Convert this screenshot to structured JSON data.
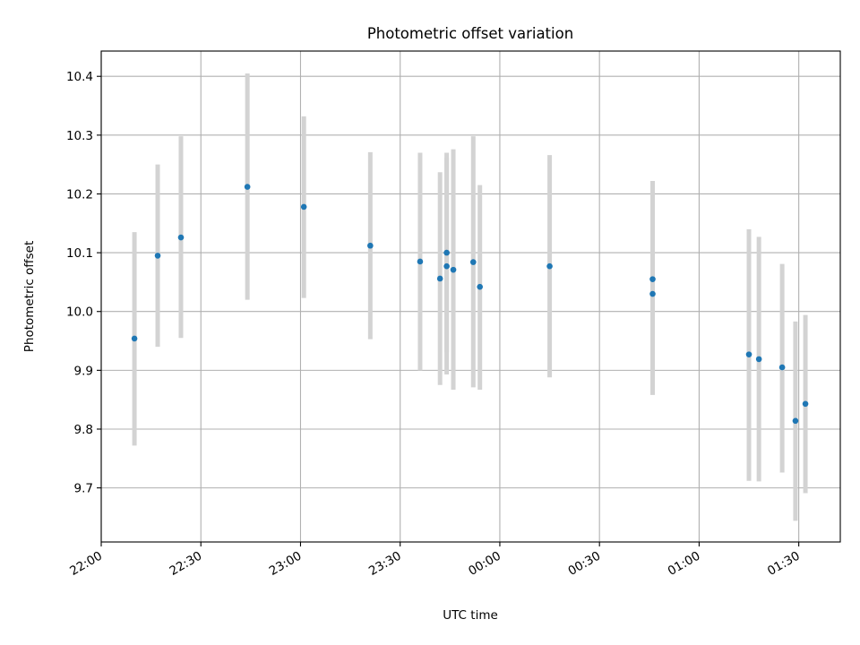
{
  "chart_data": {
    "type": "scatter",
    "title": "Photometric offset variation",
    "xlabel": "UTC time",
    "ylabel": "Photometric offset",
    "x_axis": {
      "ticks": [
        {
          "minutes": 0,
          "label": "22:00"
        },
        {
          "minutes": 30,
          "label": "22:30"
        },
        {
          "minutes": 60,
          "label": "23:00"
        },
        {
          "minutes": 90,
          "label": "23:30"
        },
        {
          "minutes": 120,
          "label": "00:00"
        },
        {
          "minutes": 150,
          "label": "00:30"
        },
        {
          "minutes": 180,
          "label": "01:00"
        },
        {
          "minutes": 210,
          "label": "01:30"
        }
      ],
      "range_minutes": [
        0,
        222.5
      ]
    },
    "y_axis": {
      "ticks": [
        9.7,
        9.8,
        9.9,
        10.0,
        10.1,
        10.2,
        10.3,
        10.4
      ],
      "tick_labels": [
        "9.7",
        "9.8",
        "9.9",
        "10.0",
        "10.1",
        "10.2",
        "10.3",
        "10.4"
      ],
      "range": [
        9.608,
        10.443
      ]
    },
    "grid": true,
    "marker_color": "#1f77b4",
    "errorbar_color": "#d3d3d3",
    "points": [
      {
        "time": "22:10",
        "y": 9.954,
        "yerr_low": 9.772,
        "yerr_high": 10.135
      },
      {
        "time": "22:17",
        "y": 10.095,
        "yerr_low": 9.94,
        "yerr_high": 10.25
      },
      {
        "time": "22:24",
        "y": 10.126,
        "yerr_low": 9.955,
        "yerr_high": 10.298
      },
      {
        "time": "22:44",
        "y": 10.212,
        "yerr_low": 10.02,
        "yerr_high": 10.405
      },
      {
        "time": "23:01",
        "y": 10.178,
        "yerr_low": 10.023,
        "yerr_high": 10.332
      },
      {
        "time": "23:21",
        "y": 10.112,
        "yerr_low": 9.953,
        "yerr_high": 10.271
      },
      {
        "time": "23:36",
        "y": 10.085,
        "yerr_low": 9.9,
        "yerr_high": 10.27
      },
      {
        "time": "23:42",
        "y": 10.056,
        "yerr_low": 9.875,
        "yerr_high": 10.237
      },
      {
        "time": "23:44",
        "y": 10.1,
        "yerr_low": 9.93,
        "yerr_high": 10.27
      },
      {
        "time": "23:44",
        "y": 10.077,
        "yerr_low": 9.893,
        "yerr_high": 10.262
      },
      {
        "time": "23:46",
        "y": 10.071,
        "yerr_low": 9.867,
        "yerr_high": 10.276
      },
      {
        "time": "23:52",
        "y": 10.084,
        "yerr_low": 9.871,
        "yerr_high": 10.298
      },
      {
        "time": "23:54",
        "y": 10.042,
        "yerr_low": 9.867,
        "yerr_high": 10.215
      },
      {
        "time": "00:15",
        "y": 10.077,
        "yerr_low": 9.888,
        "yerr_high": 10.266
      },
      {
        "time": "00:46",
        "y": 10.055,
        "yerr_low": 9.888,
        "yerr_high": 10.222
      },
      {
        "time": "00:46",
        "y": 10.03,
        "yerr_low": 9.858,
        "yerr_high": 10.203
      },
      {
        "time": "01:15",
        "y": 9.927,
        "yerr_low": 9.712,
        "yerr_high": 10.14
      },
      {
        "time": "01:18",
        "y": 9.919,
        "yerr_low": 9.711,
        "yerr_high": 10.127
      },
      {
        "time": "01:25",
        "y": 9.905,
        "yerr_low": 9.726,
        "yerr_high": 10.081
      },
      {
        "time": "01:29",
        "y": 9.814,
        "yerr_low": 9.644,
        "yerr_high": 9.983
      },
      {
        "time": "01:32",
        "y": 9.843,
        "yerr_low": 9.691,
        "yerr_high": 9.994
      }
    ]
  }
}
